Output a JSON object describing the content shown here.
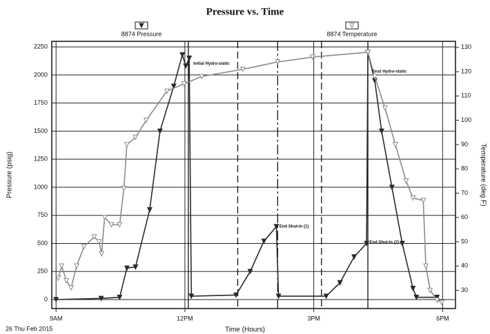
{
  "chart_data": {
    "type": "line",
    "title": "Pressure vs. Time",
    "x_label": "Time (Hours)",
    "y_label": "Pressure (psig)",
    "y2_label": "Temperature (deg F)",
    "date_label": "26 Thu Feb 2015",
    "xlim": [
      8.9,
      18.3
    ],
    "xticks": [
      {
        "value": 9,
        "label": "9AM"
      },
      {
        "value": 12,
        "label": "12PM"
      },
      {
        "value": 15,
        "label": "3PM"
      },
      {
        "value": 18,
        "label": "6PM"
      }
    ],
    "ylim": [
      -80,
      2300
    ],
    "yticks": [
      0,
      250,
      500,
      750,
      1000,
      1250,
      1500,
      1750,
      2000,
      2250
    ],
    "y2lim": [
      22.5,
      132.5
    ],
    "y2ticks": [
      30,
      40,
      50,
      60,
      70,
      80,
      90,
      100,
      110,
      120,
      130
    ],
    "grid": true,
    "event_lines": [
      12.08,
      13.23,
      14.16,
      15.18,
      16.26
    ],
    "series": [
      {
        "name": "8874 Pressure",
        "color": "#2a2a2a",
        "axis": "y",
        "x": [
          9.0,
          10.05,
          10.48,
          10.65,
          10.85,
          11.18,
          11.42,
          11.74,
          11.94,
          12.02,
          12.1,
          12.15,
          13.19,
          13.52,
          13.84,
          14.13,
          14.18,
          15.29,
          15.61,
          15.94,
          16.23,
          16.26,
          16.42,
          16.58,
          16.82,
          17.06,
          17.31,
          17.39,
          17.87
        ],
        "values": [
          0,
          10,
          20,
          280,
          290,
          800,
          1500,
          1900,
          2180,
          2080,
          2150,
          30,
          40,
          250,
          520,
          650,
          30,
          30,
          150,
          380,
          500,
          2200,
          1950,
          1500,
          1000,
          500,
          100,
          20,
          20
        ]
      },
      {
        "name": "8874 Temperature",
        "color": "#8a8a8a",
        "axis": "y2",
        "x": [
          9.05,
          9.13,
          9.24,
          9.35,
          9.48,
          9.65,
          9.89,
          10.0,
          10.06,
          10.13,
          10.29,
          10.48,
          10.58,
          10.65,
          10.85,
          11.1,
          11.58,
          11.98,
          12.39,
          13.35,
          14.16,
          14.97,
          16.26,
          16.42,
          16.66,
          16.9,
          17.15,
          17.31,
          17.55,
          17.61,
          17.71,
          17.87,
          17.98
        ],
        "values": [
          35,
          40,
          34,
          31,
          40,
          48,
          52,
          50,
          45,
          60,
          57,
          57,
          72,
          90,
          93,
          100,
          112,
          115,
          118,
          121,
          124,
          126,
          128,
          118,
          105,
          90,
          75,
          68,
          67,
          40,
          30,
          26,
          25
        ]
      }
    ],
    "annotations": [
      {
        "text": "Initial Hydro-static",
        "x": 12.15,
        "y": 2100
      },
      {
        "text": "Final Hydro-static",
        "x": 16.3,
        "y": 2030
      },
      {
        "text": "End Shut-In (1)",
        "x": 14.15,
        "y": 650
      },
      {
        "text": "End Shut-In (2)",
        "x": 16.25,
        "y": 510
      }
    ]
  }
}
